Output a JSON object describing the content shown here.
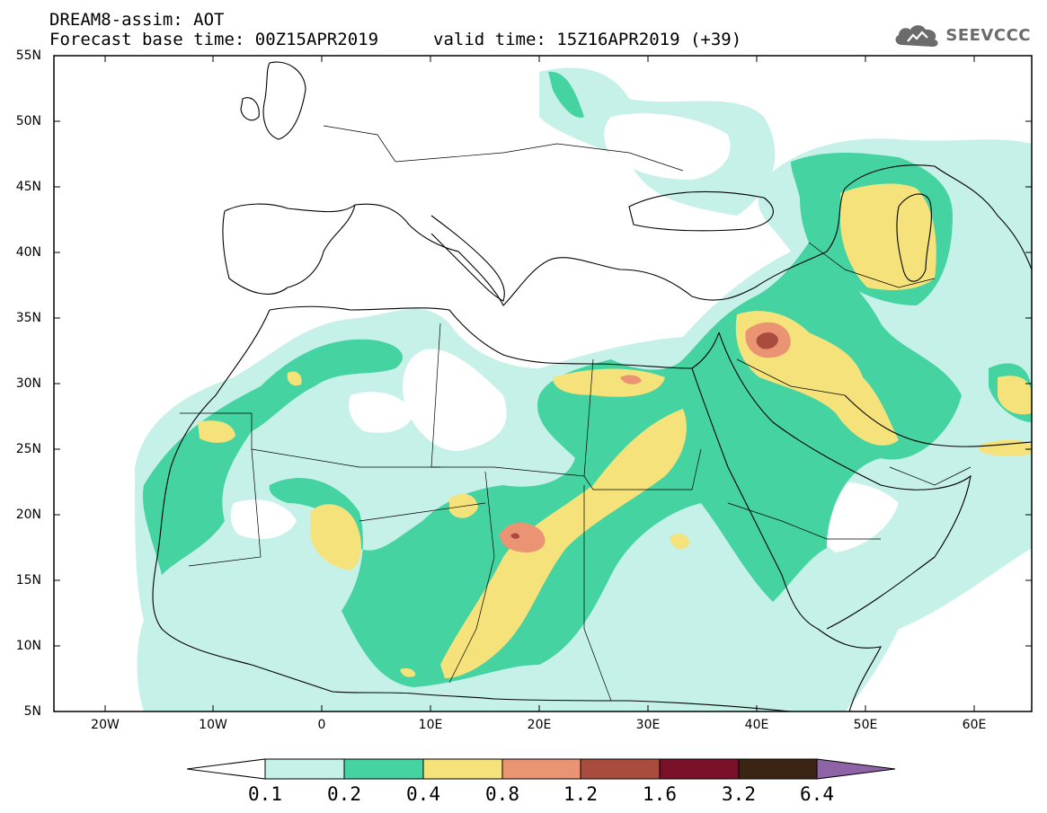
{
  "header": {
    "title": "DREAM8-assim: AOT",
    "base_time": "Forecast base time: 00Z15APR2019",
    "valid_time": "valid time: 15Z16APR2019 (+39)"
  },
  "logo": {
    "text": "SEEVCCC",
    "icon": "cloud-icon"
  },
  "map": {
    "lat_labels": [
      "55N",
      "50N",
      "45N",
      "40N",
      "35N",
      "30N",
      "25N",
      "20N",
      "15N",
      "10N",
      "5N"
    ],
    "lon_labels": [
      "20W",
      "10W",
      "0",
      "10E",
      "20E",
      "30E",
      "40E",
      "50E",
      "60E"
    ]
  },
  "colorbar": {
    "labels": [
      "0.1",
      "0.2",
      "0.4",
      "0.8",
      "1.2",
      "1.6",
      "3.2",
      "6.4"
    ],
    "colors": [
      "#ffffff",
      "#c5f1e8",
      "#44d3a1",
      "#f5e27a",
      "#eb9474",
      "#a94c3e",
      "#7a1028",
      "#3c2415",
      "#8f64a6"
    ]
  },
  "palette": {
    "aot_01_02": "#c5f1e8",
    "aot_02_04": "#44d3a1",
    "aot_04_08": "#f5e27a",
    "aot_08_12": "#eb9474",
    "aot_12_16": "#a94c3e",
    "border": "#000000"
  }
}
